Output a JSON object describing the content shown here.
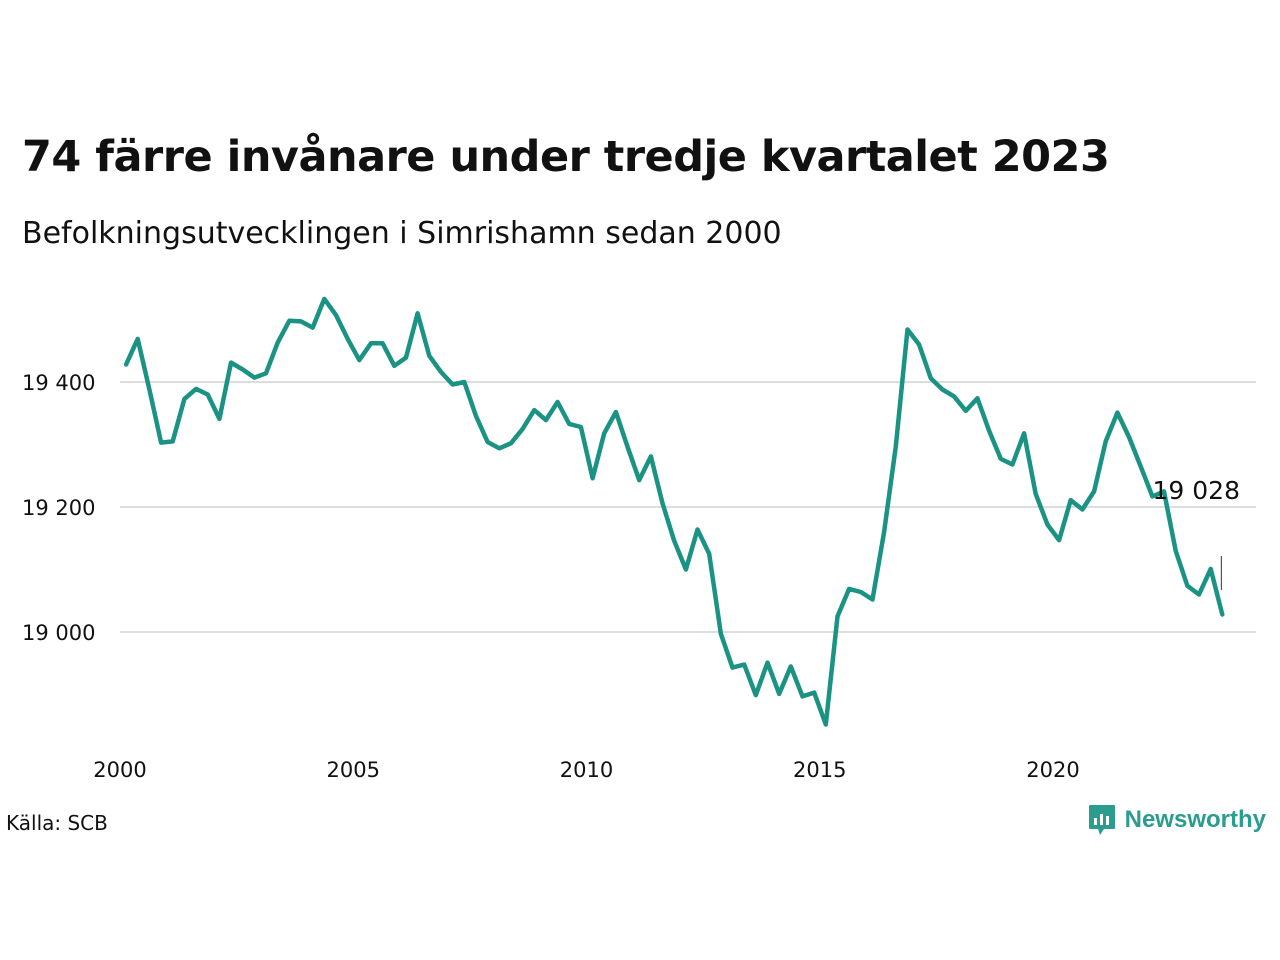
{
  "header": {
    "title": "74 färre invånare under tredje kvartalet 2023",
    "subtitle": "Befolkningsutvecklingen i Simrishamn sedan 2000"
  },
  "footer": {
    "source": "Källa: SCB",
    "brand": "Newsworthy"
  },
  "colors": {
    "line": "#1a9384",
    "grid": "#dddddd",
    "brand": "#2a9d8f"
  },
  "chart_data": {
    "type": "line",
    "title": "74 färre invånare under tredje kvartalet 2023",
    "subtitle": "Befolkningsutvecklingen i Simrishamn sedan 2000",
    "xlabel": "",
    "ylabel": "",
    "x_ticks": [
      2000,
      2005,
      2010,
      2015,
      2020
    ],
    "y_ticks": [
      19000,
      19200,
      19400
    ],
    "y_tick_labels": [
      "19 000",
      "19 200",
      "19 400"
    ],
    "x_tick_labels": [
      "2000",
      "2005",
      "2010",
      "2015",
      "2020"
    ],
    "xlim": [
      2000,
      2024
    ],
    "ylim": [
      18840,
      19560
    ],
    "grid": "horizontal",
    "end_label": "19 028",
    "series": [
      {
        "x": [
          2000.13,
          2000.38,
          2000.63,
          2000.88,
          2001.13,
          2001.38,
          2001.63,
          2001.88,
          2002.13,
          2002.38,
          2002.63,
          2002.88,
          2003.13,
          2003.38,
          2003.63,
          2003.88,
          2004.13,
          2004.38,
          2004.63,
          2004.88,
          2005.13,
          2005.38,
          2005.63,
          2005.88,
          2006.13,
          2006.38,
          2006.63,
          2006.88,
          2007.13,
          2007.38,
          2007.63,
          2007.88,
          2008.13,
          2008.38,
          2008.63,
          2008.88,
          2009.13,
          2009.38,
          2009.63,
          2009.88,
          2010.13,
          2010.38,
          2010.63,
          2010.88,
          2011.13,
          2011.38,
          2011.63,
          2011.88,
          2012.13,
          2012.38,
          2012.63,
          2012.88,
          2013.13,
          2013.38,
          2013.63,
          2013.88,
          2014.13,
          2014.38,
          2014.63,
          2014.88,
          2015.13,
          2015.38,
          2015.63,
          2015.88,
          2016.13,
          2016.38,
          2016.63,
          2016.88,
          2017.13,
          2017.38,
          2017.63,
          2017.88,
          2018.13,
          2018.38,
          2018.63,
          2018.88,
          2019.13,
          2019.38,
          2019.63,
          2019.88,
          2020.13,
          2020.38,
          2020.63,
          2020.88,
          2021.13,
          2021.38,
          2021.63,
          2021.88,
          2022.13,
          2022.38,
          2022.63,
          2022.88,
          2023.13,
          2023.38,
          2023.63
        ],
        "values": [
          19428,
          19469,
          19388,
          19303,
          19305,
          19373,
          19389,
          19380,
          19341,
          19431,
          19420,
          19407,
          19414,
          19463,
          19498,
          19497,
          19487,
          19533,
          19507,
          19469,
          19435,
          19462,
          19462,
          19426,
          19439,
          19510,
          19442,
          19416,
          19396,
          19400,
          19346,
          19304,
          19294,
          19302,
          19325,
          19355,
          19339,
          19368,
          19333,
          19328,
          19246,
          19318,
          19352,
          19296,
          19243,
          19281,
          19206,
          19146,
          19100,
          19164,
          19125,
          18997,
          18943,
          18948,
          18899,
          18951,
          18901,
          18945,
          18897,
          18903,
          18852,
          19025,
          19069,
          19064,
          19052,
          19160,
          19297,
          19484,
          19460,
          19406,
          19388,
          19377,
          19354,
          19374,
          19322,
          19277,
          19268,
          19318,
          19221,
          19172,
          19147,
          19211,
          19196,
          19225,
          19305,
          19351,
          19312,
          19265,
          19217,
          19225,
          19130,
          19074,
          19060,
          19101,
          19028
        ]
      }
    ]
  }
}
